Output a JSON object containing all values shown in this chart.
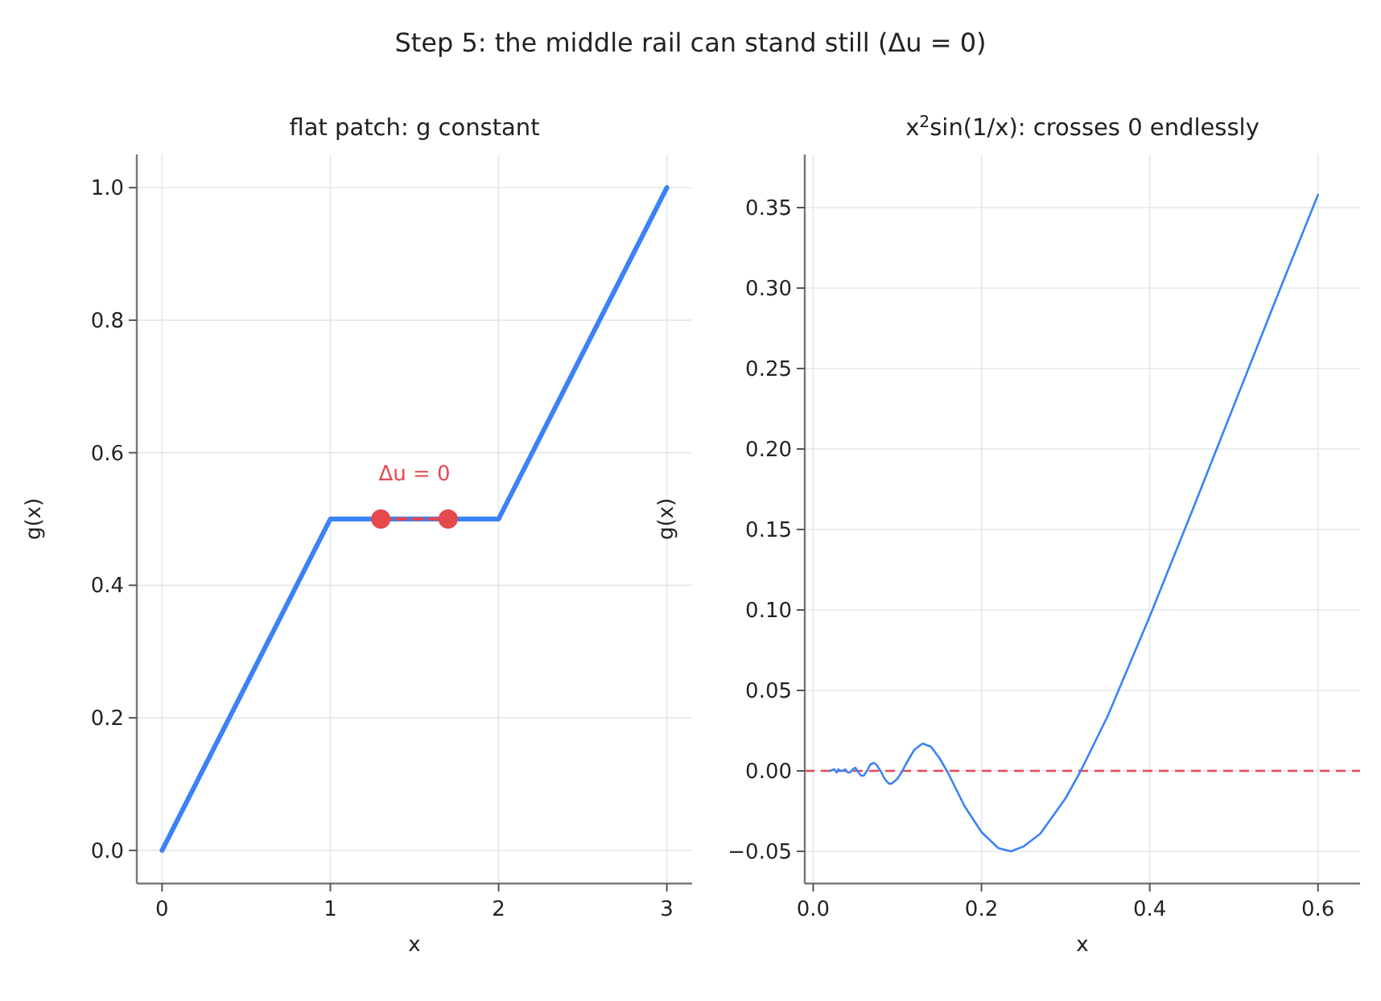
{
  "chart_data": [
    {
      "type": "line",
      "title": "flat patch: g constant",
      "xlabel": "x",
      "ylabel": "g(x)",
      "annotations": [
        "Step 5: the middle rail can stand still (Δu = 0)",
        {
          "text": "Δu = 0",
          "x": 1.5,
          "y": 0.5
        }
      ],
      "series": [
        {
          "color": "#3b82f6",
          "x": [
            0,
            1,
            2,
            3
          ],
          "values": [
            0,
            0.5,
            0.5,
            1
          ]
        },
        {
          "color": "#e5484d",
          "x": [
            1.3,
            1.7
          ],
          "values": [
            0.5,
            0.5
          ],
          "marker": "circle",
          "line_style": "dashed"
        }
      ],
      "xlim": [
        -0.15,
        3.15
      ],
      "ylim": [
        -0.05,
        1.05
      ],
      "xticks": [
        0,
        1,
        2,
        3
      ],
      "yticks": [
        {
          "value": 0,
          "label": "0.0"
        },
        0.2,
        0.4,
        0.6,
        0.8,
        {
          "value": 1,
          "label": "1.0"
        }
      ],
      "grid": true
    },
    {
      "type": "line",
      "title": "x$^{2}$sin(1/x): crosses 0 endlessly",
      "xlabel": "x",
      "ylabel": "g(x)",
      "series": [
        {
          "color": "#3b82f6",
          "x": [
            0.02,
            0.025,
            0.028,
            0.03,
            0.032,
            0.035,
            0.038,
            0.041,
            0.044,
            0.047,
            0.05,
            0.054,
            0.057,
            0.06,
            0.064,
            0.068,
            0.072,
            0.075,
            0.08,
            0.085,
            0.09,
            0.093,
            0.1,
            0.106,
            0.11,
            0.12,
            0.13,
            0.14,
            0.15,
            0.16,
            0.18,
            0.2,
            0.22,
            0.235,
            0.25,
            0.27,
            0.3,
            0.318,
            0.35,
            0.4,
            0.45,
            0.5,
            0.55,
            0.6
          ],
          "values": [
            0,
            0.001,
            -0.001,
            0.001,
            0,
            0,
            0.001,
            -0.001,
            -0.001,
            0.001,
            0.002,
            -0.001,
            -0.003,
            -0.003,
            0,
            0.004,
            0.005,
            0.004,
            0,
            -0.005,
            -0.008,
            -0.008,
            -0.005,
            0,
            0.004,
            0.013,
            0.017,
            0.015,
            0.008,
            -0.001,
            -0.022,
            -0.038,
            -0.048,
            -0.05,
            -0.047,
            -0.039,
            -0.017,
            0,
            0.034,
            0.096,
            0.161,
            0.227,
            0.293,
            0.358
          ]
        }
      ],
      "ref_lines": [
        {
          "axis": "y",
          "value": 0,
          "color": "#e5484d",
          "line_style": "dashed"
        }
      ],
      "xlim": [
        -0.01,
        0.65
      ],
      "ylim": [
        -0.07,
        0.383
      ],
      "xticks": [
        {
          "value": 0,
          "label": "0.0"
        },
        0.2,
        0.4,
        0.6
      ],
      "yticks": [
        {
          "value": -0.05,
          "label": "−0.05"
        },
        {
          "value": 0,
          "label": "0.00"
        },
        0.05,
        {
          "value": 0.1,
          "label": "0.10"
        },
        0.15,
        {
          "value": 0.2,
          "label": "0.20"
        },
        0.25,
        {
          "value": 0.3,
          "label": "0.30"
        },
        0.35
      ],
      "grid": true
    }
  ]
}
